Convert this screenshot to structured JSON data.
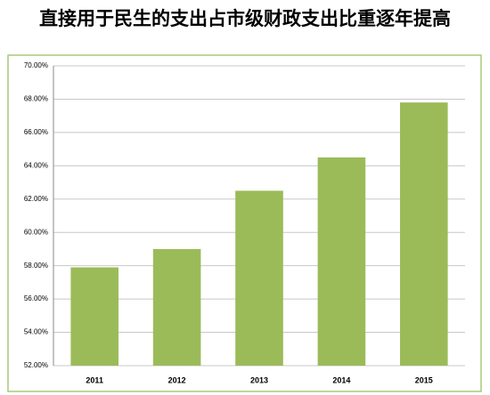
{
  "chart_data": {
    "type": "bar",
    "title": "直接用于民生的支出占市级财政支出比重逐年提高",
    "categories": [
      "2011",
      "2012",
      "2013",
      "2014",
      "2015"
    ],
    "values": [
      57.9,
      59.0,
      62.5,
      64.5,
      67.8
    ],
    "color": "#9bbb59",
    "ylim": [
      52,
      70
    ],
    "yticks": [
      {
        "value": 52,
        "label": "52.00%"
      },
      {
        "value": 54,
        "label": "54.00%"
      },
      {
        "value": 56,
        "label": "56.00%"
      },
      {
        "value": 58,
        "label": "58.00%"
      },
      {
        "value": 60,
        "label": "60.00%"
      },
      {
        "value": 62,
        "label": "62.00%"
      },
      {
        "value": 64,
        "label": "64.00%"
      },
      {
        "value": 66,
        "label": "66.00%"
      },
      {
        "value": 68,
        "label": "68.00%"
      },
      {
        "value": 70,
        "label": "70.00%"
      }
    ],
    "grid": true
  }
}
